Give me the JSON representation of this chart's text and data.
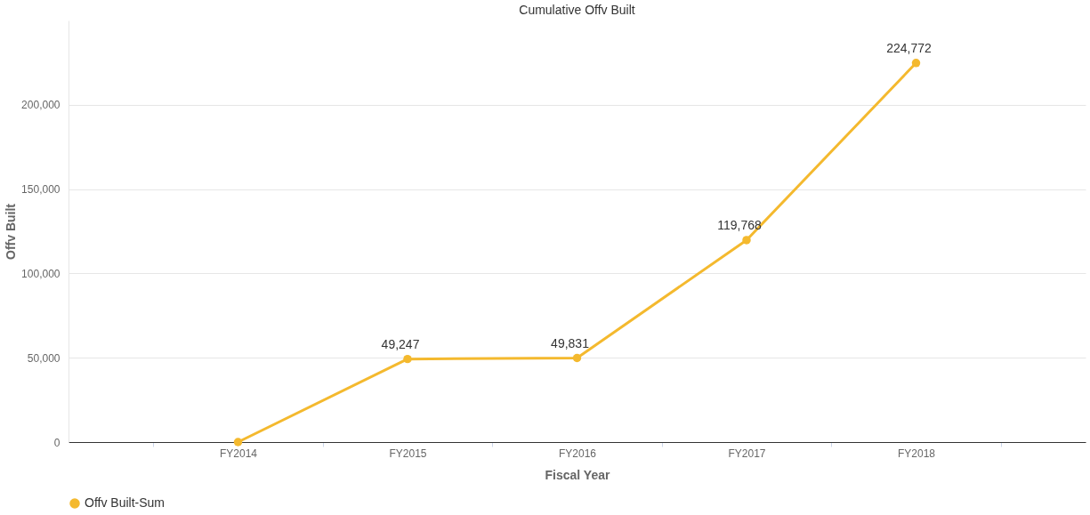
{
  "chart_data": {
    "type": "line",
    "title": "Cumulative Offv Built",
    "xlabel": "Fiscal Year",
    "ylabel": "Offv Built",
    "categories": [
      "FY2014",
      "FY2015",
      "FY2016",
      "FY2017",
      "FY2018"
    ],
    "series": [
      {
        "name": "Offv Built-Sum",
        "color": "#f4b92e",
        "values": [
          0,
          49247,
          49831,
          119768,
          224772
        ],
        "value_labels": [
          null,
          "49,247",
          "49,831",
          "119,768",
          "224,772"
        ]
      }
    ],
    "ylim": [
      0,
      250000
    ],
    "yticks": [
      0,
      {
        "value": 50000,
        "label": "50,000"
      },
      {
        "value": 100000,
        "label": "100,000"
      },
      {
        "value": 150000,
        "label": "150,000"
      },
      {
        "value": 200000,
        "label": "200,000"
      }
    ],
    "grid": "y",
    "legend": "bottom",
    "marker": "circle",
    "line_style": "solid"
  }
}
